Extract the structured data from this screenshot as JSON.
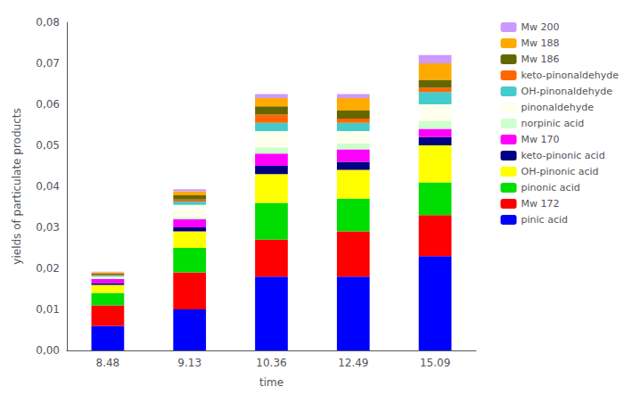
{
  "chart_data": {
    "type": "bar",
    "stacked": true,
    "xlabel": "time",
    "ylabel": "yields of particulate products",
    "categories": [
      "8.48",
      "9.13",
      "10.36",
      "12.49",
      "15.09"
    ],
    "series": [
      {
        "name": "pinic acid",
        "color": "#0000FF",
        "values": [
          0.006,
          0.01,
          0.018,
          0.018,
          0.023
        ]
      },
      {
        "name": "Mw 172",
        "color": "#FF0000",
        "values": [
          0.005,
          0.009,
          0.009,
          0.011,
          0.01
        ]
      },
      {
        "name": "pinonic acid",
        "color": "#00DD00",
        "values": [
          0.003,
          0.006,
          0.009,
          0.008,
          0.008
        ]
      },
      {
        "name": "OH-pinonic acid",
        "color": "#FFFF00",
        "values": [
          0.002,
          0.004,
          0.007,
          0.007,
          0.009
        ]
      },
      {
        "name": "keto-pinonic acid",
        "color": "#000080",
        "values": [
          0.0004,
          0.001,
          0.002,
          0.002,
          0.002
        ]
      },
      {
        "name": "Mw 170",
        "color": "#FF00FF",
        "values": [
          0.001,
          0.002,
          0.003,
          0.003,
          0.002
        ]
      },
      {
        "name": "norpinic acid",
        "color": "#CCFFCC",
        "values": [
          0.0003,
          0.0005,
          0.0015,
          0.0015,
          0.002
        ]
      },
      {
        "name": "pinonaldehyde",
        "color": "#FFFFEE",
        "values": [
          0.0003,
          0.003,
          0.004,
          0.003,
          0.004
        ]
      },
      {
        "name": "OH-pinonaldehyde",
        "color": "#44CCCC",
        "values": [
          0.0003,
          0.0008,
          0.002,
          0.002,
          0.003
        ]
      },
      {
        "name": "keto-pinonaldehyde",
        "color": "#FF6600",
        "values": [
          0.0002,
          0.0005,
          0.002,
          0.001,
          0.001
        ]
      },
      {
        "name": "Mw 186",
        "color": "#666600",
        "values": [
          0.0002,
          0.001,
          0.002,
          0.002,
          0.002
        ]
      },
      {
        "name": "Mw 188",
        "color": "#FFAA00",
        "values": [
          0.0003,
          0.001,
          0.002,
          0.003,
          0.004
        ]
      },
      {
        "name": "Mw 200",
        "color": "#CC99FF",
        "values": [
          0.0002,
          0.0005,
          0.001,
          0.001,
          0.002
        ]
      }
    ],
    "ylim": [
      0,
      0.08
    ],
    "yticks": [
      {
        "value": 0.0,
        "label": "0,00"
      },
      {
        "value": 0.01,
        "label": "0,01"
      },
      {
        "value": 0.02,
        "label": "0,02"
      },
      {
        "value": 0.03,
        "label": "0,03"
      },
      {
        "value": 0.04,
        "label": "0,04"
      },
      {
        "value": 0.05,
        "label": "0,05"
      },
      {
        "value": 0.06,
        "label": "0,06"
      },
      {
        "value": 0.07,
        "label": "0,07"
      },
      {
        "value": 0.08,
        "label": "0,08"
      }
    ],
    "grid": false,
    "legend": "right"
  }
}
